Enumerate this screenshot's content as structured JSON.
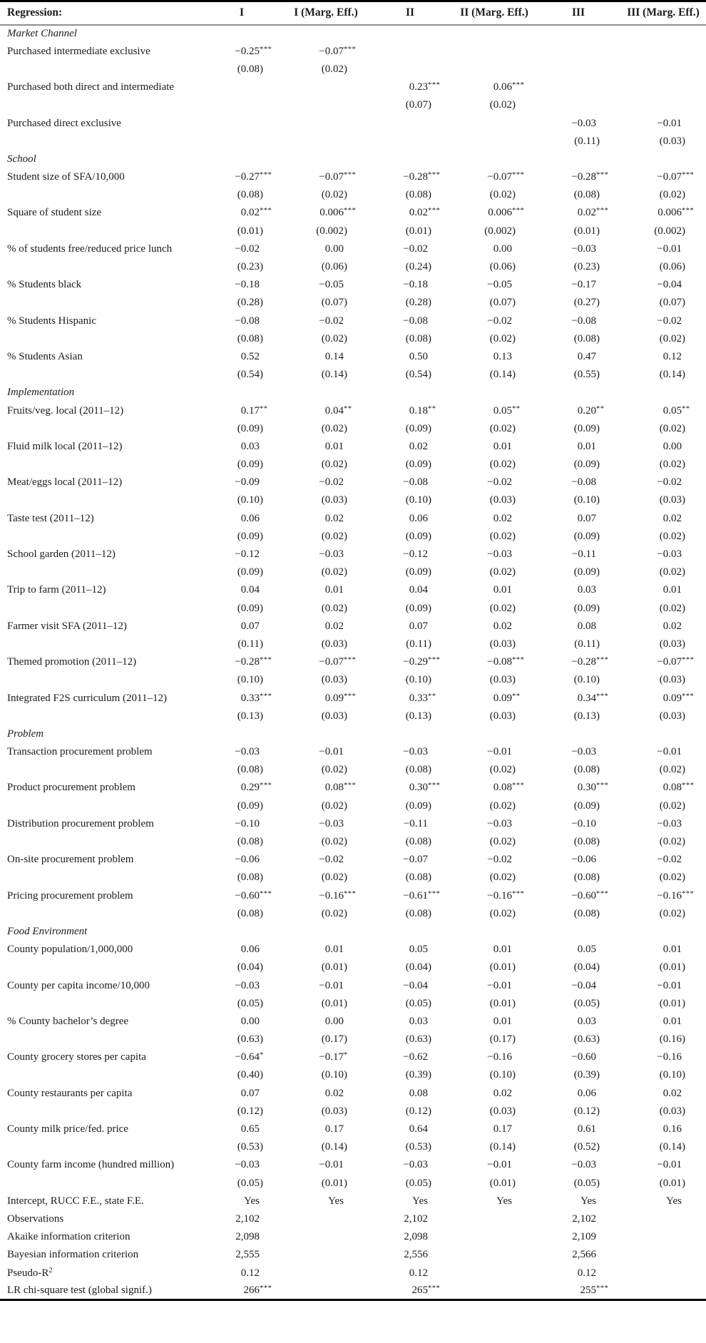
{
  "colors": {
    "text": "#1b1b1b",
    "top_bottom_rule": "#000000",
    "header_separator": "#8f8f8f",
    "background": "#ffffff"
  },
  "table": {
    "header": [
      "Regression:",
      "I",
      "I (Marg. Eff.)",
      "II",
      "II (Marg. Eff.)",
      "III",
      "III (Marg. Eff.)"
    ],
    "sections": [
      {
        "title": "Market Channel",
        "rows": [
          {
            "label": "Purchased intermediate exclusive",
            "coef": [
              "−0.25***",
              "−0.07***",
              "",
              "",
              "",
              ""
            ],
            "se": [
              "(0.08)",
              "(0.02)",
              "",
              "",
              "",
              ""
            ]
          },
          {
            "label": "Purchased both direct and intermediate",
            "coef": [
              "",
              "",
              "0.23***",
              "0.06***",
              "",
              ""
            ],
            "se": [
              "",
              "",
              "(0.07)",
              "(0.02)",
              "",
              ""
            ]
          },
          {
            "label": "Purchased direct exclusive",
            "coef": [
              "",
              "",
              "",
              "",
              "−0.03",
              "−0.01"
            ],
            "se": [
              "",
              "",
              "",
              "",
              "(0.11)",
              "(0.03)"
            ]
          }
        ]
      },
      {
        "title": "School",
        "rows": [
          {
            "label": "Student size of SFA/10,000",
            "coef": [
              "−0.27***",
              "−0.07***",
              "−0.28***",
              "−0.07***",
              "−0.28***",
              "−0.07***"
            ],
            "se": [
              "(0.08)",
              "(0.02)",
              "(0.08)",
              "(0.02)",
              "(0.08)",
              "(0.02)"
            ]
          },
          {
            "label": "Square of student size",
            "coef": [
              "0.02***",
              "0.006***",
              "0.02***",
              "0.006***",
              "0.02***",
              "0.006***"
            ],
            "se": [
              "(0.01)",
              "(0.002)",
              "(0.01)",
              "(0.002)",
              "(0.01)",
              "(0.002)"
            ]
          },
          {
            "label": "% of students free/reduced price lunch",
            "coef": [
              "−0.02",
              "0.00",
              "−0.02",
              "0.00",
              "−0.03",
              "−0.01"
            ],
            "se": [
              "(0.23)",
              "(0.06)",
              "(0.24)",
              "(0.06)",
              "(0.23)",
              "(0.06)"
            ]
          },
          {
            "label": "% Students black",
            "coef": [
              "−0.18",
              "−0.05",
              "−0.18",
              "−0.05",
              "−0.17",
              "−0.04"
            ],
            "se": [
              "(0.28)",
              "(0.07)",
              "(0.28)",
              "(0.07)",
              "(0.27)",
              "(0.07)"
            ]
          },
          {
            "label": "% Students Hispanic",
            "coef": [
              "−0.08",
              "−0.02",
              "−0.08",
              "−0.02",
              "−0.08",
              "−0.02"
            ],
            "se": [
              "(0.08)",
              "(0.02)",
              "(0.08)",
              "(0.02)",
              "(0.08)",
              "(0.02)"
            ]
          },
          {
            "label": "% Students Asian",
            "coef": [
              "0.52",
              "0.14",
              "0.50",
              "0.13",
              "0.47",
              "0.12"
            ],
            "se": [
              "(0.54)",
              "(0.14)",
              "(0.54)",
              "(0.14)",
              "(0.55)",
              "(0.14)"
            ]
          }
        ]
      },
      {
        "title": "Implementation",
        "rows": [
          {
            "label": "Fruits/veg. local (2011–12)",
            "coef": [
              "0.17**",
              "0.04**",
              "0.18**",
              "0.05**",
              "0.20**",
              "0.05**"
            ],
            "se": [
              "(0.09)",
              "(0.02)",
              "(0.09)",
              "(0.02)",
              "(0.09)",
              "(0.02)"
            ]
          },
          {
            "label": "Fluid milk local (2011–12)",
            "coef": [
              "0.03",
              "0.01",
              "0.02",
              "0.01",
              "0.01",
              "0.00"
            ],
            "se": [
              "(0.09)",
              "(0.02)",
              "(0.09)",
              "(0.02)",
              "(0.09)",
              "(0.02)"
            ]
          },
          {
            "label": "Meat/eggs local (2011–12)",
            "coef": [
              "−0.09",
              "−0.02",
              "−0.08",
              "−0.02",
              "−0.08",
              "−0.02"
            ],
            "se": [
              "(0.10)",
              "(0.03)",
              "(0.10)",
              "(0.03)",
              "(0.10)",
              "(0.03)"
            ]
          },
          {
            "label": "Taste test (2011–12)",
            "coef": [
              "0.06",
              "0.02",
              "0.06",
              "0.02",
              "0.07",
              "0.02"
            ],
            "se": [
              "(0.09)",
              "(0.02)",
              "(0.09)",
              "(0.02)",
              "(0.09)",
              "(0.02)"
            ]
          },
          {
            "label": "School garden (2011–12)",
            "coef": [
              "−0.12",
              "−0.03",
              "−0.12",
              "−0.03",
              "−0.11",
              "−0.03"
            ],
            "se": [
              "(0.09)",
              "(0.02)",
              "(0.09)",
              "(0.02)",
              "(0.09)",
              "(0.02)"
            ]
          },
          {
            "label": "Trip to farm (2011–12)",
            "coef": [
              "0.04",
              "0.01",
              "0.04",
              "0.01",
              "0.03",
              "0.01"
            ],
            "se": [
              "(0.09)",
              "(0.02)",
              "(0.09)",
              "(0.02)",
              "(0.09)",
              "(0.02)"
            ]
          },
          {
            "label": "Farmer visit SFA (2011–12)",
            "coef": [
              "0.07",
              "0.02",
              "0.07",
              "0.02",
              "0.08",
              "0.02"
            ],
            "se": [
              "(0.11)",
              "(0.03)",
              "(0.11)",
              "(0.03)",
              "(0.11)",
              "(0.03)"
            ]
          },
          {
            "label": "Themed promotion (2011–12)",
            "coef": [
              "−0.28***",
              "−0.07***",
              "−0.29***",
              "−0.08***",
              "−0.28***",
              "−0.07***"
            ],
            "se": [
              "(0.10)",
              "(0.03)",
              "(0.10)",
              "(0.03)",
              "(0.10)",
              "(0.03)"
            ]
          },
          {
            "label": "Integrated F2S curriculum (2011–12)",
            "coef": [
              "0.33***",
              "0.09***",
              "0.33**",
              "0.09**",
              "0.34***",
              "0.09***"
            ],
            "se": [
              "(0.13)",
              "(0.03)",
              "(0.13)",
              "(0.03)",
              "(0.13)",
              "(0.03)"
            ]
          }
        ]
      },
      {
        "title": "Problem",
        "rows": [
          {
            "label": "Transaction procurement problem",
            "coef": [
              "−0.03",
              "−0.01",
              "−0.03",
              "−0.01",
              "−0.03",
              "−0.01"
            ],
            "se": [
              "(0.08)",
              "(0.02)",
              "(0.08)",
              "(0.02)",
              "(0.08)",
              "(0.02)"
            ]
          },
          {
            "label": "Product procurement problem",
            "coef": [
              "0.29***",
              "0.08***",
              "0.30***",
              "0.08***",
              "0.30***",
              "0.08***"
            ],
            "se": [
              "(0.09)",
              "(0.02)",
              "(0.09)",
              "(0.02)",
              "(0.09)",
              "(0.02)"
            ]
          },
          {
            "label": "Distribution procurement problem",
            "coef": [
              "−0.10",
              "−0.03",
              "−0.11",
              "−0.03",
              "−0.10",
              "−0.03"
            ],
            "se": [
              "(0.08)",
              "(0.02)",
              "(0.08)",
              "(0.02)",
              "(0.08)",
              "(0.02)"
            ]
          },
          {
            "label": "On-site procurement problem",
            "coef": [
              "−0.06",
              "−0.02",
              "−0.07",
              "−0.02",
              "−0.06",
              "−0.02"
            ],
            "se": [
              "(0.08)",
              "(0.02)",
              "(0.08)",
              "(0.02)",
              "(0.08)",
              "(0.02)"
            ]
          },
          {
            "label": "Pricing procurement problem",
            "coef": [
              "−0.60***",
              "−0.16***",
              "−0.61***",
              "−0.16***",
              "−0.60***",
              "−0.16***"
            ],
            "se": [
              "(0.08)",
              "(0.02)",
              "(0.08)",
              "(0.02)",
              "(0.08)",
              "(0.02)"
            ]
          }
        ]
      },
      {
        "title": "Food Environment",
        "rows": [
          {
            "label": "County population/1,000,000",
            "coef": [
              "0.06",
              "0.01",
              "0.05",
              "0.01",
              "0.05",
              "0.01"
            ],
            "se": [
              "(0.04)",
              "(0.01)",
              "(0.04)",
              "(0.01)",
              "(0.04)",
              "(0.01)"
            ]
          },
          {
            "label": "County per capita income/10,000",
            "coef": [
              "−0.03",
              "−0.01",
              "−0.04",
              "−0.01",
              "−0.04",
              "−0.01"
            ],
            "se": [
              "(0.05)",
              "(0.01)",
              "(0.05)",
              "(0.01)",
              "(0.05)",
              "(0.01)"
            ]
          },
          {
            "label": "% County bachelor’s degree",
            "coef": [
              "0.00",
              "0.00",
              "0.03",
              "0.01",
              "0.03",
              "0.01"
            ],
            "se": [
              "(0.63)",
              "(0.17)",
              "(0.63)",
              "(0.17)",
              "(0.63)",
              "(0.16)"
            ]
          },
          {
            "label": "County grocery stores per capita",
            "coef": [
              "−0.64*",
              "−0.17*",
              "−0.62",
              "−0.16",
              "−0.60",
              "−0.16"
            ],
            "se": [
              "(0.40)",
              "(0.10)",
              "(0.39)",
              "(0.10)",
              "(0.39)",
              "(0.10)"
            ]
          },
          {
            "label": "County restaurants per capita",
            "coef": [
              "0.07",
              "0.02",
              "0.08",
              "0.02",
              "0.06",
              "0.02"
            ],
            "se": [
              "(0.12)",
              "(0.03)",
              "(0.12)",
              "(0.03)",
              "(0.12)",
              "(0.03)"
            ]
          },
          {
            "label": "County milk price/fed. price",
            "coef": [
              "0.65",
              "0.17",
              "0.64",
              "0.17",
              "0.61",
              "0.16"
            ],
            "se": [
              "(0.53)",
              "(0.14)",
              "(0.53)",
              "(0.14)",
              "(0.52)",
              "(0.14)"
            ]
          },
          {
            "label": "County farm income (hundred million)",
            "coef": [
              "−0.03",
              "−0.01",
              "−0.03",
              "−0.01",
              "−0.03",
              "−0.01"
            ],
            "se": [
              "(0.05)",
              "(0.01)",
              "(0.05)",
              "(0.01)",
              "(0.05)",
              "(0.01)"
            ]
          }
        ]
      }
    ],
    "summary": [
      {
        "label": "Intercept, RUCC F.E., state F.E.",
        "values": [
          "Yes",
          "Yes",
          "Yes",
          "Yes",
          "Yes",
          "Yes"
        ]
      },
      {
        "label": "Observations",
        "values": [
          "2,102",
          "",
          "2,102",
          "",
          "2,102",
          ""
        ]
      },
      {
        "label": "Akaike information criterion",
        "values": [
          "2,098",
          "",
          "2,098",
          "",
          "2,109",
          ""
        ]
      },
      {
        "label": "Bayesian information criterion",
        "values": [
          "2,555",
          "",
          "2,556",
          "",
          "2,566",
          ""
        ]
      },
      {
        "label": "Pseudo-R",
        "label_sup": "2",
        "values": [
          "0.12",
          "",
          "0.12",
          "",
          "0.12",
          ""
        ]
      },
      {
        "label": "LR chi-square test (global signif.)",
        "values": [
          "266***",
          "",
          "265***",
          "",
          "255***",
          ""
        ]
      }
    ]
  }
}
